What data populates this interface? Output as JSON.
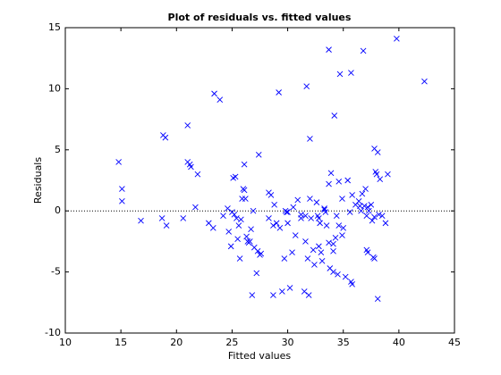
{
  "chart_data": {
    "type": "scatter",
    "title": "Plot of residuals vs. fitted values",
    "xlabel": "Fitted values",
    "ylabel": "Residuals",
    "color": "#0000ff",
    "marker": "x",
    "hline": 0,
    "xlim": [
      10,
      45
    ],
    "xticks": [
      10,
      15,
      20,
      25,
      30,
      35,
      40,
      45
    ],
    "ylim": [
      -10,
      15
    ],
    "yticks": [
      -10,
      -5,
      0,
      5,
      10,
      15
    ],
    "x": [
      14.8,
      15.1,
      15.1,
      16.8,
      18.7,
      18.8,
      19.0,
      19.1,
      20.6,
      21.0,
      21.0,
      21.2,
      21.3,
      21.7,
      21.9,
      22.9,
      23.3,
      23.4,
      23.9,
      24.2,
      24.6,
      24.7,
      24.9,
      25.0,
      25.1,
      25.2,
      25.3,
      25.4,
      25.5,
      25.6,
      25.7,
      25.8,
      25.9,
      26.0,
      26.1,
      26.1,
      26.2,
      26.3,
      26.4,
      26.5,
      26.6,
      26.7,
      26.8,
      26.9,
      27.0,
      27.2,
      27.3,
      27.4,
      27.5,
      27.6,
      28.3,
      28.3,
      28.5,
      28.7,
      28.7,
      28.8,
      29.0,
      29.2,
      29.3,
      29.5,
      29.7,
      29.8,
      29.9,
      30.0,
      30.0,
      30.2,
      30.4,
      30.5,
      30.7,
      30.9,
      31.2,
      31.2,
      31.5,
      31.6,
      31.6,
      31.7,
      31.8,
      31.9,
      32.0,
      32.0,
      32.1,
      32.3,
      32.4,
      32.6,
      32.7,
      32.8,
      32.8,
      32.9,
      33.0,
      33.1,
      33.3,
      33.3,
      33.4,
      33.5,
      33.7,
      33.7,
      33.7,
      33.8,
      33.9,
      34.1,
      34.1,
      34.1,
      34.2,
      34.3,
      34.4,
      34.5,
      34.6,
      34.6,
      34.7,
      34.9,
      34.9,
      35.0,
      35.2,
      35.4,
      35.6,
      35.7,
      35.7,
      35.8,
      35.8,
      36.1,
      36.4,
      36.5,
      36.6,
      36.7,
      36.8,
      36.9,
      37.0,
      37.1,
      37.1,
      37.2,
      37.2,
      37.3,
      37.5,
      37.6,
      37.7,
      37.8,
      37.8,
      37.8,
      37.9,
      38.0,
      38.1,
      38.1,
      38.2,
      38.3,
      38.5,
      38.8,
      39.0,
      39.8,
      42.3
    ],
    "y": [
      4.0,
      1.8,
      0.8,
      -0.8,
      -0.6,
      6.2,
      6.0,
      -1.2,
      -0.6,
      7.0,
      4.0,
      3.8,
      3.6,
      0.3,
      3.0,
      -1.0,
      -1.4,
      9.6,
      9.1,
      -0.4,
      0.2,
      -1.7,
      -2.9,
      -0.1,
      2.7,
      -0.3,
      2.8,
      -0.6,
      -2.3,
      -1.2,
      -3.9,
      -0.7,
      1.0,
      1.8,
      3.8,
      1.7,
      1.0,
      -2.1,
      -2.5,
      -2.6,
      -2.5,
      -1.5,
      -6.9,
      0.0,
      -3.0,
      -5.1,
      -3.3,
      4.6,
      -3.6,
      -3.5,
      -0.6,
      1.5,
      1.3,
      -1.2,
      -6.9,
      0.5,
      -1.0,
      9.7,
      -1.4,
      -6.6,
      -3.9,
      0.0,
      -0.1,
      -1.0,
      -0.1,
      -6.3,
      -3.4,
      0.3,
      -2.0,
      0.9,
      -0.3,
      -0.6,
      -6.6,
      -2.5,
      -0.4,
      10.2,
      -3.9,
      -6.9,
      5.9,
      1.0,
      -0.6,
      -3.2,
      -4.4,
      0.7,
      -0.4,
      -0.6,
      -2.9,
      -1.0,
      -3.4,
      -4.1,
      0.2,
      0.1,
      -0.1,
      -1.2,
      -2.6,
      13.2,
      2.2,
      -4.7,
      3.1,
      -2.7,
      -3.3,
      -5.0,
      7.8,
      -2.2,
      -0.4,
      -5.2,
      -1.2,
      2.4,
      11.2,
      -2.0,
      1.0,
      -1.4,
      -5.4,
      2.5,
      -0.1,
      11.3,
      -5.8,
      -6.0,
      1.3,
      0.5,
      0.8,
      0.4,
      0.0,
      1.4,
      13.1,
      0.4,
      1.8,
      -3.2,
      -0.4,
      0.3,
      -3.4,
      0.0,
      0.5,
      -0.8,
      -3.8,
      -0.5,
      -3.9,
      5.1,
      3.2,
      3.0,
      4.8,
      -7.2,
      -0.3,
      2.6,
      -0.4,
      -1.0,
      3.0,
      14.1,
      10.6
    ]
  }
}
